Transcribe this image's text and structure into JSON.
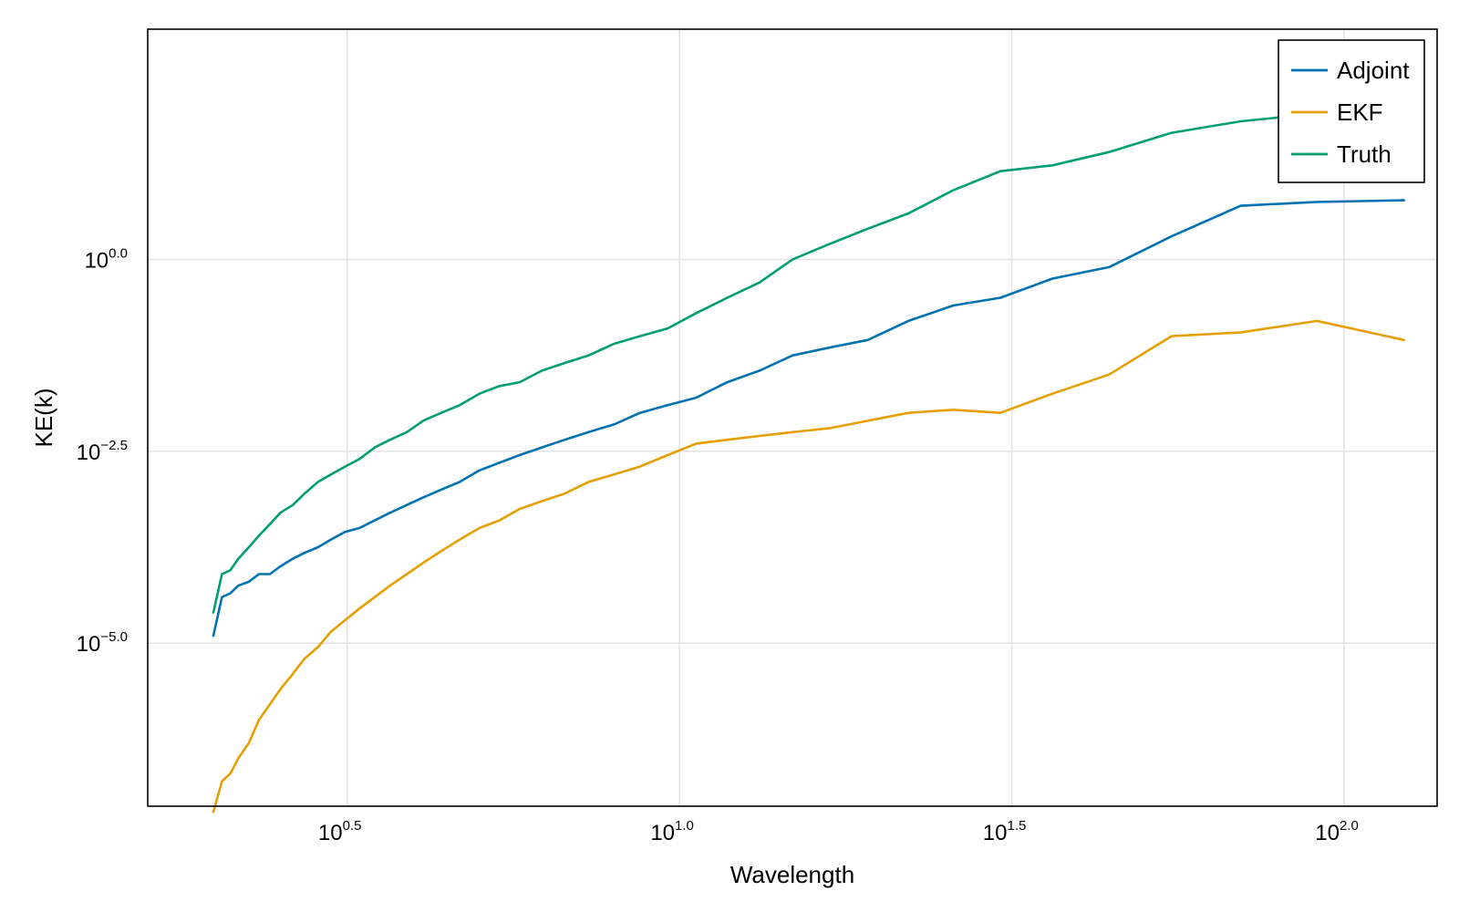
{
  "chart_data": {
    "type": "line",
    "title": "",
    "xlabel": "Wavelength",
    "ylabel": "KE(k)",
    "xscale": "log10",
    "yscale": "log10",
    "xlim": [
      1.585,
      138.0
    ],
    "ylim": [
      7.5e-08,
      1000
    ],
    "grid": true,
    "legend_position": "top-right",
    "xticks": [
      {
        "value": 3.1623,
        "base": "10",
        "exp": "0.5"
      },
      {
        "value": 10,
        "base": "10",
        "exp": "1.0"
      },
      {
        "value": 31.623,
        "base": "10",
        "exp": "1.5"
      },
      {
        "value": 100,
        "base": "10",
        "exp": "2.0"
      }
    ],
    "yticks": [
      {
        "value": 1,
        "base": "10",
        "exp": "0.0"
      },
      {
        "value": 0.0031623,
        "base": "10",
        "exp": "−2.5"
      },
      {
        "value": 1e-05,
        "base": "10",
        "exp": "−5.0"
      }
    ],
    "series": [
      {
        "name": "Adjoint",
        "color": "#0072b2",
        "x": [
          1.99,
          2.05,
          2.11,
          2.17,
          2.25,
          2.33,
          2.42,
          2.51,
          2.62,
          2.73,
          2.86,
          2.99,
          3.14,
          3.3,
          3.48,
          3.67,
          3.89,
          4.12,
          4.38,
          4.67,
          5.0,
          5.36,
          5.75,
          6.21,
          6.72,
          7.3,
          7.97,
          8.72,
          9.6,
          10.6,
          11.8,
          13.2,
          14.8,
          16.8,
          19.2,
          22.1,
          25.8,
          30.4,
          36.4,
          44.3,
          55.0,
          69.9,
          91.0,
          123.0
        ],
        "y": [
          1.25e-05,
          3.98e-05,
          4.47e-05,
          5.62e-05,
          6.31e-05,
          7.94e-05,
          7.94e-05,
          0.0001,
          0.000126,
          0.00015,
          0.000178,
          0.000224,
          0.000282,
          0.000316,
          0.000398,
          0.000501,
          0.000631,
          0.000794,
          0.001,
          0.00126,
          0.00178,
          0.00224,
          0.00282,
          0.00355,
          0.00447,
          0.00562,
          0.00708,
          0.01,
          0.0126,
          0.0158,
          0.0251,
          0.0355,
          0.0562,
          0.0708,
          0.0891,
          0.158,
          0.251,
          0.316,
          0.562,
          0.794,
          2.0,
          5.01,
          5.62,
          5.89
        ]
      },
      {
        "name": "EKF",
        "color": "#e69f00",
        "x": [
          1.99,
          2.05,
          2.11,
          2.17,
          2.25,
          2.33,
          2.42,
          2.51,
          2.62,
          2.73,
          2.86,
          2.99,
          3.14,
          3.3,
          3.48,
          3.67,
          3.89,
          4.12,
          4.38,
          4.67,
          5.0,
          5.36,
          5.75,
          6.21,
          6.72,
          7.3,
          7.97,
          8.72,
          9.6,
          10.6,
          11.8,
          13.2,
          14.8,
          16.8,
          19.2,
          22.1,
          25.8,
          30.4,
          36.4,
          44.3,
          55.0,
          69.9,
          91.0,
          123.0
        ],
        "y": [
          6.31e-08,
          1.58e-07,
          2e-07,
          3.16e-07,
          5.01e-07,
          1e-06,
          1.6e-06,
          2.51e-06,
          3.98e-06,
          6.3e-06,
          8.9e-06,
          1.41e-05,
          1.99e-05,
          2.82e-05,
          3.98e-05,
          5.62e-05,
          7.94e-05,
          0.000112,
          0.000158,
          0.000224,
          0.000316,
          0.000398,
          0.000562,
          0.000708,
          0.00089,
          0.00126,
          0.00158,
          0.002,
          0.00282,
          0.00398,
          0.00447,
          0.00501,
          0.00562,
          0.00631,
          0.0079,
          0.01,
          0.011,
          0.01,
          0.0178,
          0.0316,
          0.1,
          0.112,
          0.158,
          0.0891
        ]
      },
      {
        "name": "Truth",
        "color": "#009e73",
        "x": [
          1.99,
          2.05,
          2.11,
          2.17,
          2.25,
          2.33,
          2.42,
          2.51,
          2.62,
          2.73,
          2.86,
          2.99,
          3.14,
          3.3,
          3.48,
          3.67,
          3.89,
          4.12,
          4.38,
          4.67,
          5.0,
          5.36,
          5.75,
          6.21,
          6.72,
          7.3,
          7.97,
          8.72,
          9.6,
          10.6,
          11.8,
          13.2,
          14.8,
          16.8,
          19.2,
          22.1,
          25.8,
          30.4,
          36.4,
          44.3,
          55.0,
          69.9,
          91.0,
          123.0
        ],
        "y": [
          2.51e-05,
          7.94e-05,
          8.91e-05,
          0.000126,
          0.000178,
          0.000251,
          0.000355,
          0.000501,
          0.000631,
          0.000891,
          0.00126,
          0.00158,
          0.002,
          0.00251,
          0.00355,
          0.00447,
          0.00562,
          0.00794,
          0.01,
          0.0126,
          0.0178,
          0.0224,
          0.0251,
          0.0355,
          0.0447,
          0.0562,
          0.0794,
          0.1,
          0.126,
          0.2,
          0.316,
          0.501,
          1.0,
          1.58,
          2.51,
          3.98,
          7.94,
          14.1,
          16.8,
          25.1,
          44.7,
          63.1,
          79.4,
          100.0
        ]
      }
    ]
  }
}
